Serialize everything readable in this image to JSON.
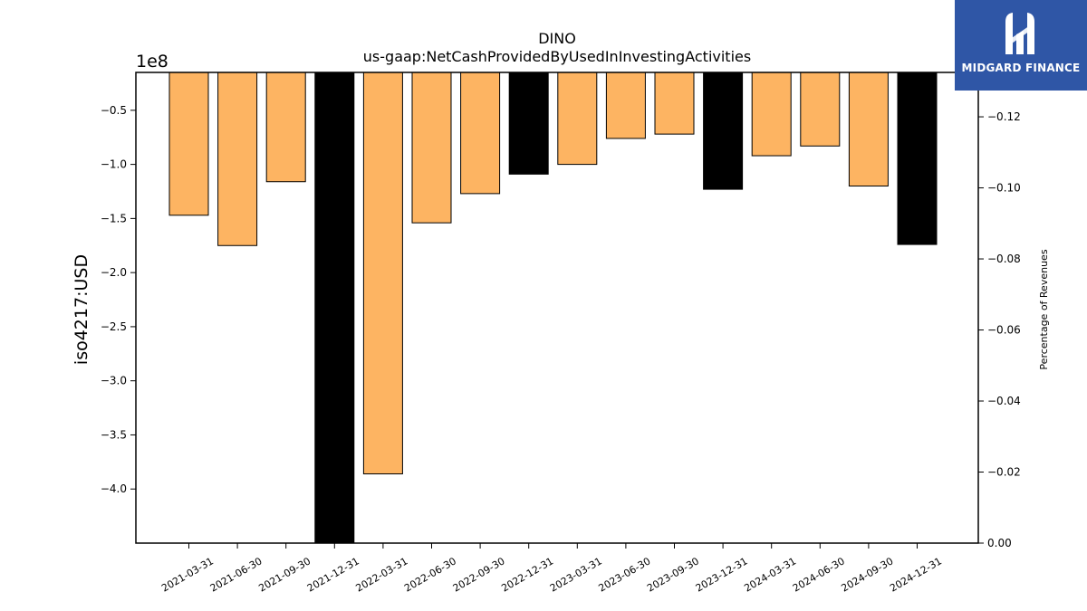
{
  "chart_data": {
    "type": "bar",
    "title": "DINO",
    "subtitle": "us-gaap:NetCashProvidedByUsedInInvestingActivities",
    "ylabel": "iso4217:USD",
    "y_offset_label": "1e8",
    "y2label": "Percentage of Revenues",
    "categories": [
      "2021-03-31",
      "2021-06-30",
      "2021-09-30",
      "2021-12-31",
      "2022-03-31",
      "2022-06-30",
      "2022-09-30",
      "2022-12-31",
      "2023-03-31",
      "2023-06-30",
      "2023-09-30",
      "2023-12-31",
      "2024-03-31",
      "2024-06-30",
      "2024-09-30",
      "2024-12-31"
    ],
    "values": [
      -147000000,
      -175000000,
      -116000000,
      -450000000,
      -386000000,
      -154000000,
      -127000000,
      -109000000,
      -100000000,
      -76000000,
      -72000000,
      -123000000,
      -92000000,
      -83000000,
      -120000000,
      -174000000
    ],
    "bar_colors": [
      "#fdb462",
      "#fdb462",
      "#fdb462",
      "#000000",
      "#fdb462",
      "#fdb462",
      "#fdb462",
      "#000000",
      "#fdb462",
      "#fdb462",
      "#fdb462",
      "#000000",
      "#fdb462",
      "#fdb462",
      "#fdb462",
      "#000000"
    ],
    "ylim": [
      -450000000,
      -15000000
    ],
    "yticks": [
      -0.5,
      -1.0,
      -1.5,
      -2.0,
      -2.5,
      -3.0,
      -3.5,
      -4.0
    ],
    "y2lim": [
      0.0,
      -0.1325
    ],
    "y2ticks": [
      0.0,
      -0.02,
      -0.04,
      -0.06,
      -0.08,
      -0.1,
      -0.12
    ],
    "grid": false,
    "legend": "none"
  },
  "logo": {
    "text": "MIDGARD FINANCE"
  }
}
